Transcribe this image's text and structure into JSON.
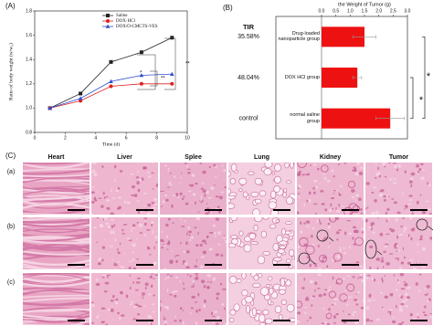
{
  "panel_labels": [
    "(A)",
    "(B)",
    "(C)"
  ],
  "chart_data": [
    {
      "type": "line",
      "y_label": "Ratio of body weight (w/w₀)",
      "x_label": "Time (d)",
      "xlim": [
        0,
        10
      ],
      "xticks": [
        0,
        2,
        4,
        6,
        8,
        10
      ],
      "ylim": [
        0.8,
        1.8
      ],
      "yticks": [
        0.8,
        {
          "value": 1,
          "label": "1.0"
        },
        1.2,
        1.4,
        1.6,
        1.8
      ],
      "x": [
        1,
        3,
        5,
        7,
        9
      ],
      "series": [
        {
          "name": "Saline",
          "color": "#222222",
          "marker": "square",
          "values": [
            1.0,
            1.12,
            1.38,
            1.46,
            1.58
          ]
        },
        {
          "name": "DOX·HCl",
          "color": "#e02020",
          "marker": "circle",
          "values": [
            1.0,
            1.06,
            1.18,
            1.2,
            1.2
          ]
        },
        {
          "name": "DOX/O-CMCTS-VES",
          "color": "#3050d0",
          "marker": "triangle",
          "values": [
            1.0,
            1.08,
            1.22,
            1.27,
            1.28
          ]
        }
      ],
      "annotations": [
        "*",
        "**",
        "**"
      ]
    },
    {
      "type": "hbar",
      "title": "the Weight of Tumor (g)",
      "categories": [
        "Drug-loaded nanoparticle group",
        "DOX HCl group",
        "normal saline group"
      ],
      "values": [
        1.5,
        1.25,
        2.4
      ],
      "errors": [
        0.4,
        0.15,
        0.5
      ],
      "color": "#ee1111",
      "xlim": [
        0,
        3
      ],
      "xticks": [
        {
          "value": 0,
          "label": "0.0"
        },
        0.5,
        {
          "value": 1,
          "label": "1.0"
        },
        1.5,
        {
          "value": 2,
          "label": "2.0"
        },
        2.5,
        {
          "value": 3,
          "label": "3.0"
        }
      ],
      "side_header": "TIR",
      "side_labels": [
        "35.58%",
        "48.04%",
        "control"
      ],
      "annotations": [
        "*",
        "*"
      ]
    }
  ],
  "histology": {
    "columns": [
      "Heart",
      "Liver",
      "Splee",
      "Lung",
      "Kidney",
      "Tumor"
    ],
    "rows": [
      "(a)",
      "(b)",
      "(c)"
    ]
  }
}
